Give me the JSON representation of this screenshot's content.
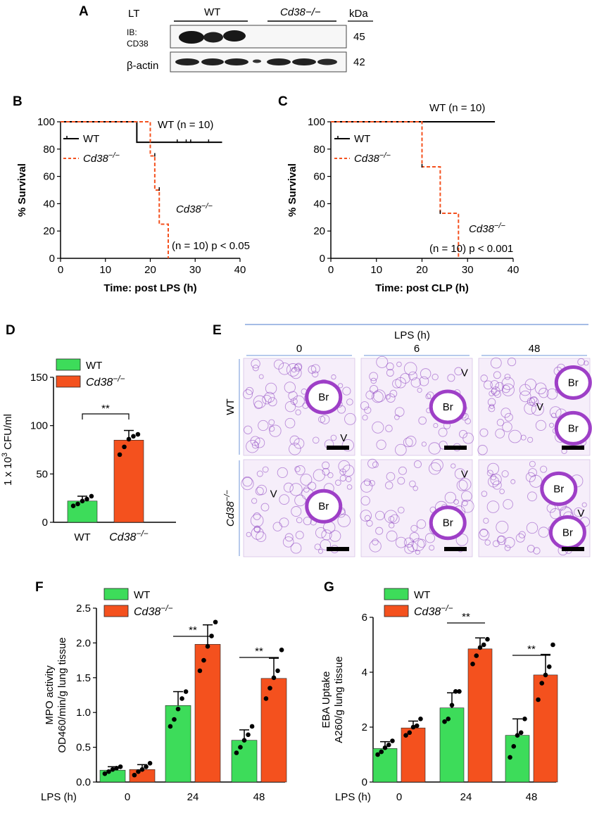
{
  "panel_labels": {
    "a": "A",
    "b": "B",
    "c": "C",
    "d": "D",
    "e": "E",
    "f": "F",
    "g": "G"
  },
  "colors": {
    "wt": "#3ddc5a",
    "ko": "#f4511e",
    "ko_line": "#f4511e",
    "stain": "#8a3fbf",
    "blue": "#6f95d8"
  },
  "panel_a": {
    "lt_label": "LT",
    "group_wt": "WT",
    "group_ko": "Cd38−/−",
    "kda": "kDa",
    "ib_label": "IB:",
    "ib_protein": "CD38",
    "actin_label": "β-actin",
    "mw_top": "45",
    "mw_bottom": "42"
  },
  "chart_data": [
    {
      "id": "B",
      "type": "line",
      "title": "",
      "xlabel": "Time: post LPS (h)",
      "ylabel": "% Survival",
      "xlim": [
        0,
        40
      ],
      "ylim": [
        0,
        100
      ],
      "xticks": [
        "0",
        "10",
        "20",
        "30",
        "40"
      ],
      "yticks": [
        "0",
        "20",
        "40",
        "60",
        "80",
        "100"
      ],
      "legend": [
        "WT",
        "Cd38−/−"
      ],
      "series": [
        {
          "name": "WT",
          "x": [
            0,
            17,
            17,
            36
          ],
          "y": [
            100,
            100,
            85,
            85
          ]
        },
        {
          "name": "Cd38−/−",
          "x": [
            0,
            20,
            20,
            21,
            21,
            22,
            22,
            23,
            23,
            24,
            24
          ],
          "y": [
            100,
            100,
            75,
            75,
            50,
            50,
            25,
            25,
            25,
            25,
            0
          ]
        }
      ],
      "annotations": [
        "WT (n = 10)",
        "Cd38−/−",
        "(n = 10) p < 0.05"
      ]
    },
    {
      "id": "C",
      "type": "line",
      "title": "",
      "xlabel": "Time: post CLP (h)",
      "ylabel": "% Survival",
      "xlim": [
        0,
        40
      ],
      "ylim": [
        0,
        100
      ],
      "xticks": [
        "0",
        "10",
        "20",
        "30",
        "40"
      ],
      "yticks": [
        "0",
        "20",
        "40",
        "60",
        "80",
        "100"
      ],
      "legend": [
        "WT",
        "Cd38−/−"
      ],
      "series": [
        {
          "name": "WT",
          "x": [
            0,
            36
          ],
          "y": [
            100,
            100
          ]
        },
        {
          "name": "Cd38−/−",
          "x": [
            0,
            20,
            20,
            24,
            24,
            28,
            28
          ],
          "y": [
            100,
            100,
            67,
            67,
            33,
            33,
            0
          ]
        }
      ],
      "annotations": [
        "WT (n = 10)",
        "Cd38−/−",
        "(n = 10) p < 0.001"
      ]
    },
    {
      "id": "D",
      "type": "bar",
      "title": "",
      "ylabel": "1 x 10³ CFU/ml",
      "ylim": [
        0,
        150
      ],
      "yticks": [
        "0",
        "50",
        "100",
        "150"
      ],
      "categories": [
        "WT",
        "Cd38−/−"
      ],
      "legend": [
        "WT",
        "Cd38−/−"
      ],
      "values": [
        22,
        85
      ],
      "errors": [
        5,
        10
      ],
      "points": [
        [
          17,
          19,
          22,
          24,
          27
        ],
        [
          70,
          78,
          86,
          89,
          91
        ]
      ],
      "significance": "**"
    },
    {
      "id": "F",
      "type": "bar",
      "title": "",
      "ylabel": "MPO activity",
      "ylabel2": "OD460/min/g lung tissue",
      "xlabel": "LPS (h)",
      "ylim": [
        0,
        2.5
      ],
      "yticks": [
        "0.0",
        "0.5",
        "1.0",
        "1.5",
        "2.0",
        "2.5"
      ],
      "categories": [
        "0",
        "24",
        "48"
      ],
      "legend": [
        "WT",
        "Cd38−/−"
      ],
      "series": [
        {
          "name": "WT",
          "values": [
            0.17,
            1.1,
            0.6
          ],
          "errors": [
            0.05,
            0.2,
            0.15
          ],
          "points": [
            [
              0.12,
              0.15,
              0.18,
              0.2,
              0.22
            ],
            [
              0.8,
              0.9,
              1.05,
              1.2,
              1.3
            ],
            [
              0.42,
              0.5,
              0.6,
              0.68,
              0.8
            ]
          ]
        },
        {
          "name": "Cd38−/−",
          "values": [
            0.18,
            1.98,
            1.49
          ],
          "errors": [
            0.07,
            0.28,
            0.29
          ],
          "points": [
            [
              0.1,
              0.15,
              0.18,
              0.22,
              0.27
            ],
            [
              1.6,
              1.75,
              1.95,
              2.1,
              2.3
            ],
            [
              1.2,
              1.35,
              1.5,
              1.6,
              1.9
            ]
          ]
        }
      ],
      "significance": [
        "**",
        "**"
      ]
    },
    {
      "id": "G",
      "type": "bar",
      "title": "",
      "ylabel": "EBA Uptake",
      "ylabel2": "A260/g lung tissue",
      "xlabel": "LPS (h)",
      "ylim": [
        0,
        6
      ],
      "yticks": [
        "0",
        "2",
        "4",
        "6"
      ],
      "categories": [
        "0",
        "24",
        "48"
      ],
      "legend": [
        "WT",
        "Cd38−/−"
      ],
      "series": [
        {
          "name": "WT",
          "values": [
            1.22,
            2.7,
            1.7
          ],
          "errors": [
            0.25,
            0.55,
            0.6
          ],
          "points": [
            [
              1.0,
              1.1,
              1.25,
              1.35,
              1.5
            ],
            [
              2.2,
              2.3,
              2.8,
              3.3,
              3.3
            ],
            [
              0.9,
              1.3,
              1.7,
              1.8,
              2.3
            ]
          ]
        },
        {
          "name": "Cd38−/−",
          "values": [
            1.97,
            4.85,
            3.9
          ],
          "errors": [
            0.25,
            0.4,
            0.75
          ],
          "points": [
            [
              1.7,
              1.8,
              2.0,
              2.05,
              2.3
            ],
            [
              4.3,
              4.6,
              4.9,
              5.0,
              5.2
            ],
            [
              3.0,
              3.6,
              3.9,
              4.2,
              5.0
            ]
          ]
        }
      ],
      "significance": [
        "**",
        "**"
      ]
    }
  ],
  "panel_e": {
    "treatment": "LPS (h)",
    "timepoints": [
      "0",
      "6",
      "48"
    ],
    "rows": [
      "WT",
      "Cd38−/−"
    ],
    "labels": [
      [
        "Br",
        "V"
      ],
      [
        "Br",
        "V"
      ],
      [
        "Br",
        "Br",
        "V"
      ],
      [
        "V",
        "Br"
      ],
      [
        "V",
        "Br"
      ],
      [
        "Br",
        "V",
        "Br"
      ]
    ]
  }
}
